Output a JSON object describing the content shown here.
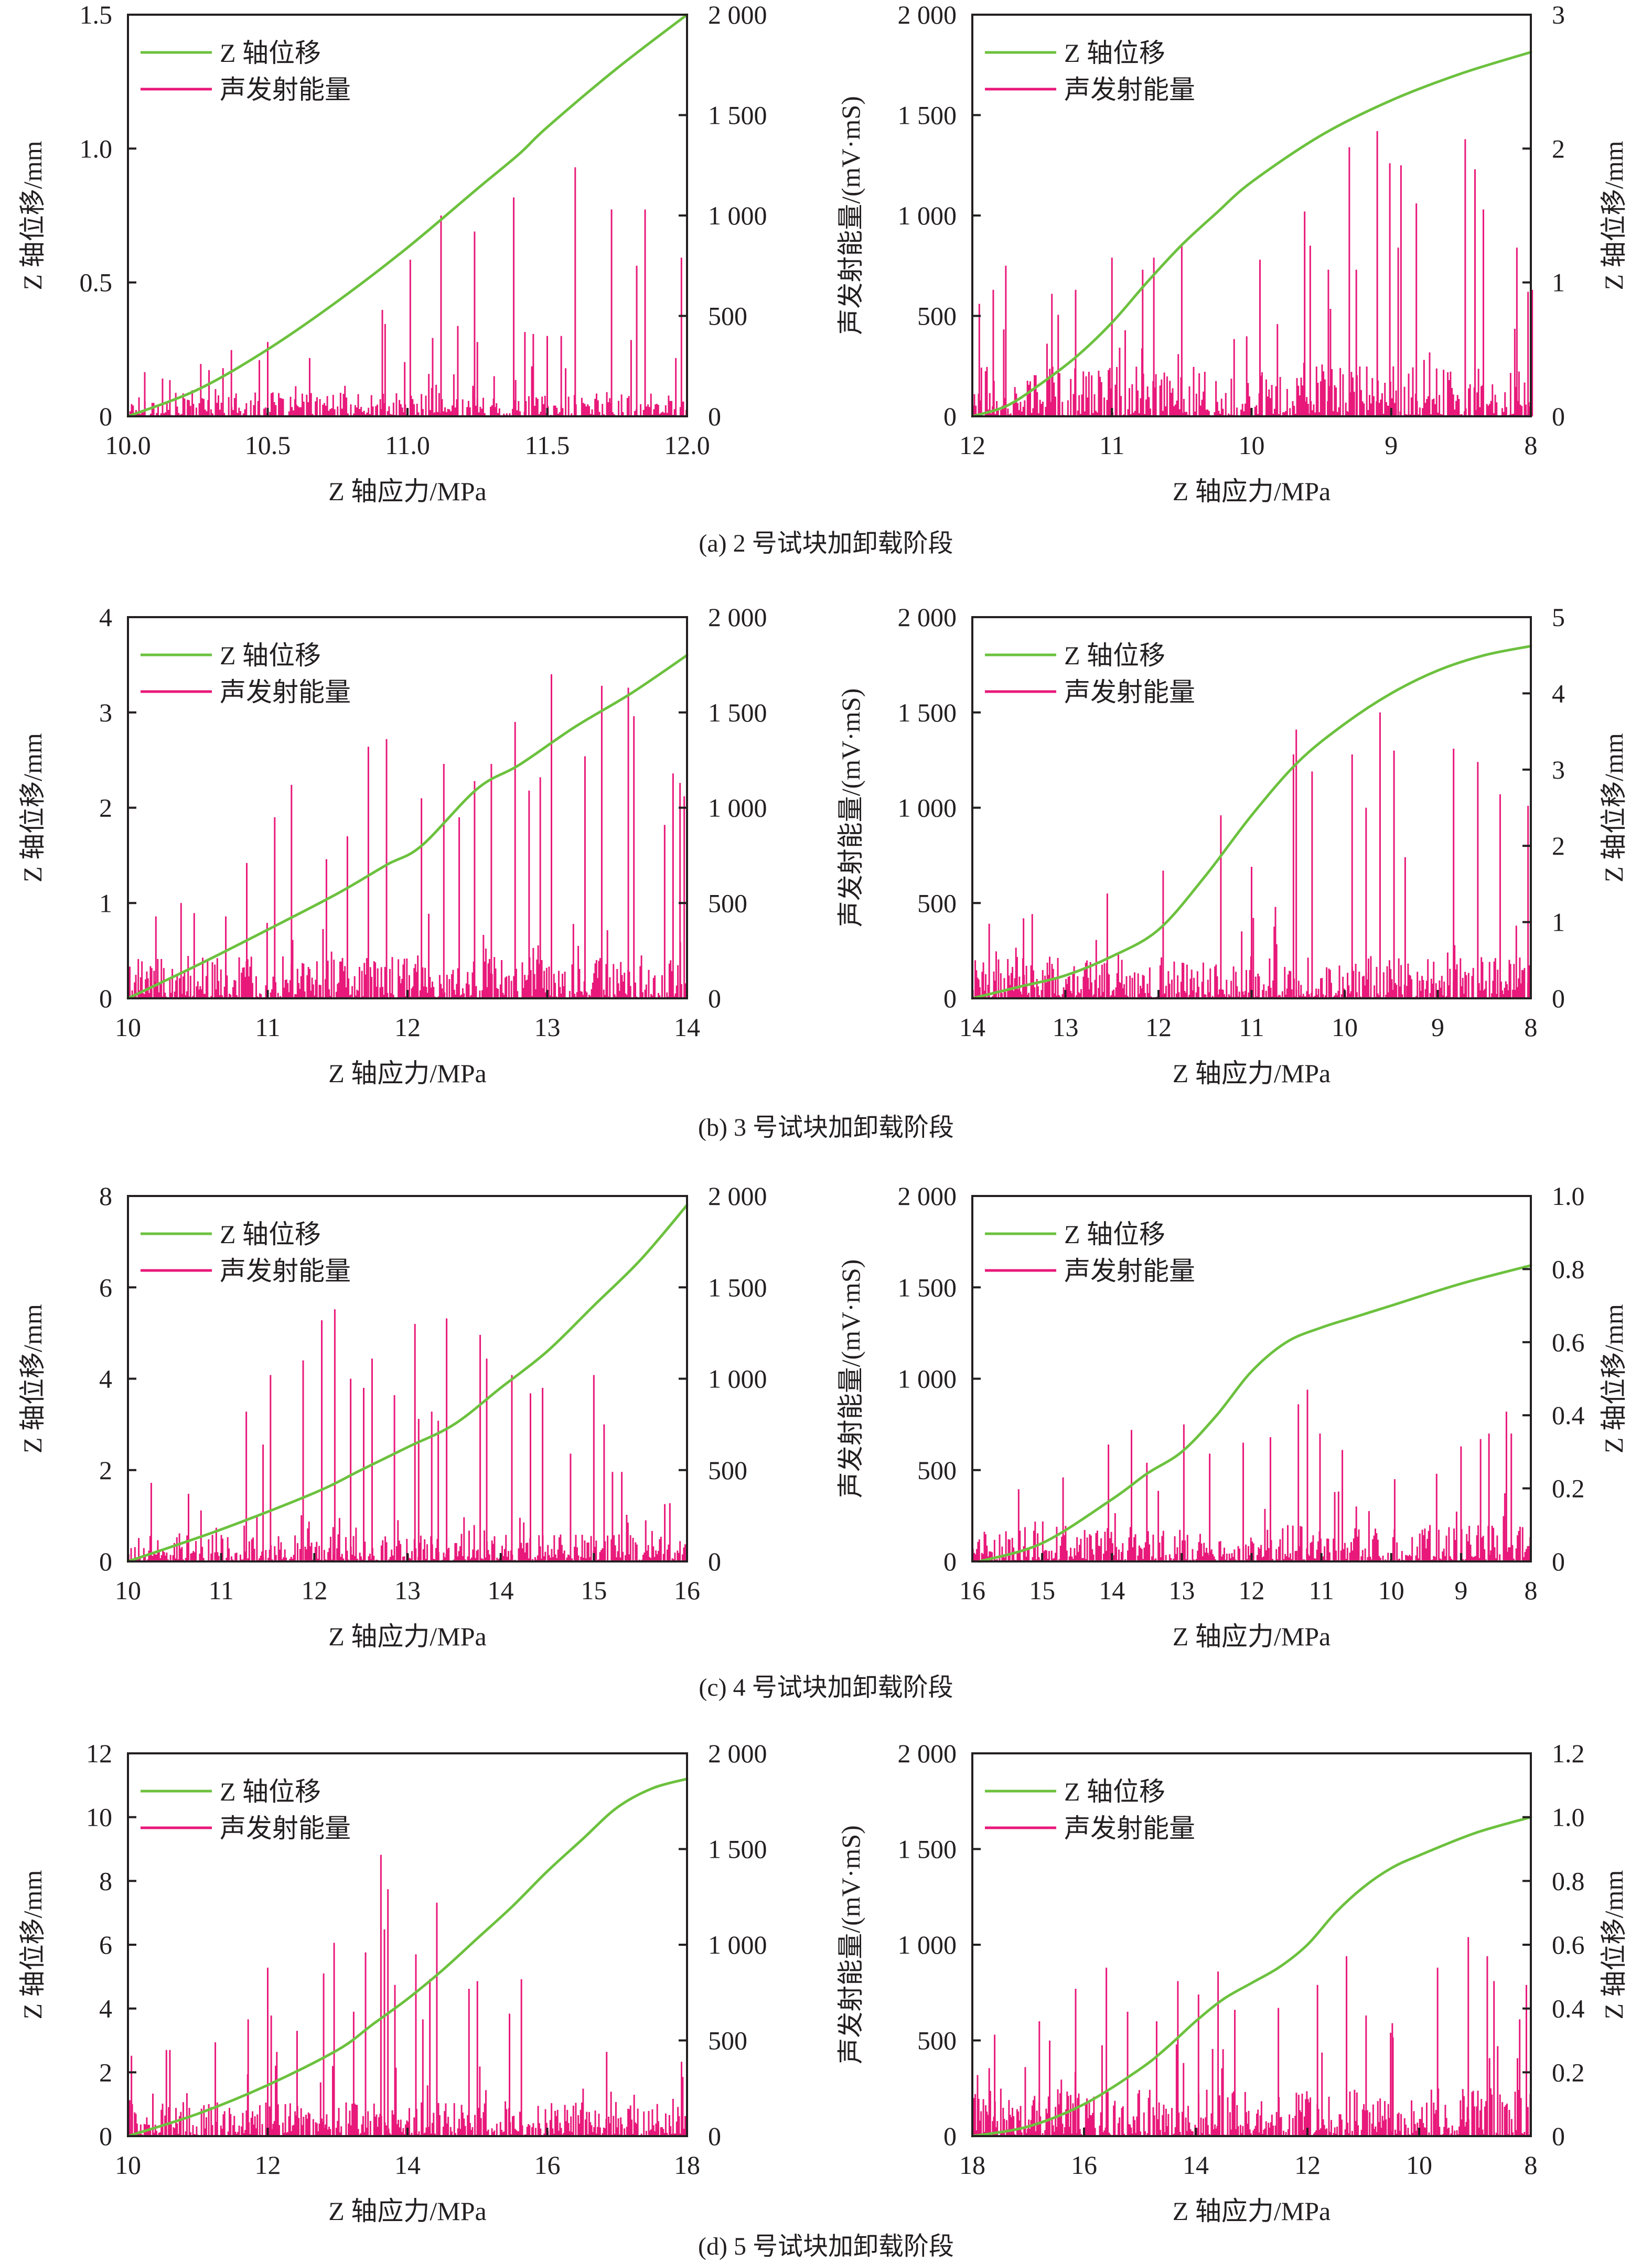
{
  "figure": {
    "legend": {
      "displacement": "Z 轴位移",
      "energy": "声发射能量"
    },
    "colors": {
      "displacement": "#6cc13e",
      "energy": "#e8197a",
      "axis": "#231f20"
    },
    "xlabel": "Z 轴应力/MPa",
    "ylabel_disp": "Z 轴位移/mm",
    "ylabel_energy": "声发射能量/(mV·mS)"
  },
  "captions": [
    "(a) 2 号试块加卸载阶段",
    "(b) 3 号试块加卸载阶段",
    "(c) 4 号试块加卸载阶段",
    "(d) 5 号试块加卸载阶段"
  ],
  "chart_data": [
    {
      "id": "a-loading",
      "row": 0,
      "side": "left",
      "type": "bar+line",
      "phase": "loading",
      "xlim": [
        10,
        12
      ],
      "xticks": [
        10,
        10.5,
        11,
        11.5,
        12
      ],
      "xtick_labels": [
        "10.0",
        "10.5",
        "11.0",
        "11.5",
        "12.0"
      ],
      "disp_axis": "left",
      "disp_lim": [
        0,
        1.5
      ],
      "disp_ticks": [
        0,
        0.5,
        1.0,
        1.5
      ],
      "disp_tick_labels": [
        "0",
        "0.5",
        "1.0",
        "1.5"
      ],
      "energy_axis": "right",
      "energy_lim": [
        0,
        2000
      ],
      "energy_ticks": [
        0,
        500,
        1000,
        1500,
        2000
      ],
      "energy_tick_labels": [
        "0",
        "500",
        "1 000",
        "1 500",
        "2 000"
      ],
      "displacement": {
        "x": [
          10,
          10.25,
          10.5,
          10.75,
          11,
          11.25,
          11.4,
          11.5,
          11.75,
          12
        ],
        "y": [
          0,
          0.1,
          0.25,
          0.43,
          0.63,
          0.85,
          0.98,
          1.08,
          1.3,
          1.5
        ]
      },
      "energy_peaks": {
        "x": [
          10.06,
          10.23,
          10.29,
          10.34,
          10.37,
          10.47,
          10.5,
          10.6,
          10.65,
          10.91,
          10.92,
          10.99,
          11.01,
          11.09,
          11.12,
          11.18,
          11.24,
          11.25,
          11.31,
          11.38,
          11.42,
          11.45,
          11.5,
          11.55,
          11.6,
          11.73,
          11.8,
          11.82,
          11.85,
          11.96,
          11.98
        ],
        "y": [
          220,
          130,
          230,
          240,
          330,
          280,
          370,
          150,
          290,
          530,
          460,
          270,
          780,
          390,
          1000,
          450,
          920,
          370,
          200,
          1090,
          420,
          410,
          400,
          400,
          1240,
          1030,
          380,
          750,
          1030,
          290,
          790
        ]
      },
      "energy_noise_max": 120,
      "bar_count": 380
    },
    {
      "id": "a-unloading",
      "row": 0,
      "side": "right",
      "type": "bar+line",
      "phase": "unloading",
      "xlim": [
        12,
        8
      ],
      "xticks": [
        12,
        11,
        10,
        9,
        8
      ],
      "xtick_labels": [
        "12",
        "11",
        "10",
        "9",
        "8"
      ],
      "energy_axis": "left",
      "energy_lim": [
        0,
        2000
      ],
      "energy_ticks": [
        0,
        500,
        1000,
        1500,
        2000
      ],
      "energy_tick_labels": [
        "0",
        "500",
        "1 000",
        "1 500",
        "2 000"
      ],
      "disp_axis": "right",
      "disp_lim": [
        0,
        3
      ],
      "disp_ticks": [
        0,
        1,
        2,
        3
      ],
      "disp_tick_labels": [
        "0",
        "1",
        "2",
        "3"
      ],
      "displacement": {
        "x": [
          12,
          11.75,
          11.5,
          11.25,
          11,
          10.75,
          10.5,
          10.25,
          10,
          9.5,
          9,
          8.5,
          8
        ],
        "y": [
          0,
          0.08,
          0.25,
          0.45,
          0.7,
          1.0,
          1.28,
          1.52,
          1.75,
          2.1,
          2.36,
          2.56,
          2.72
        ]
      },
      "energy_peaks": {
        "x": [
          11.95,
          11.85,
          11.76,
          11.43,
          11.26,
          11.0,
          10.78,
          10.7,
          10.5,
          9.94,
          9.62,
          9.58,
          9.45,
          9.3,
          9.25,
          9.1,
          9.01,
          8.95,
          8.93,
          8.82,
          8.47,
          8.4,
          8.34,
          8.1,
          8.02,
          7.99
        ],
        "y": [
          560,
          630,
          750,
          610,
          630,
          790,
          730,
          790,
          860,
          780,
          1020,
          850,
          730,
          1340,
          730,
          1420,
          1260,
          840,
          1250,
          1060,
          1380,
          1230,
          1030,
          840,
          620,
          630
        ]
      },
      "energy_noise_max": 250,
      "bar_count": 400
    },
    {
      "id": "b-loading",
      "row": 1,
      "side": "left",
      "type": "bar+line",
      "phase": "loading",
      "xlim": [
        10,
        14
      ],
      "xticks": [
        10,
        11,
        12,
        13,
        14
      ],
      "xtick_labels": [
        "10",
        "11",
        "12",
        "13",
        "14"
      ],
      "disp_axis": "left",
      "disp_lim": [
        0,
        4
      ],
      "disp_ticks": [
        0,
        1,
        2,
        3,
        4
      ],
      "disp_tick_labels": [
        "0",
        "1",
        "2",
        "3",
        "4"
      ],
      "energy_axis": "right",
      "energy_lim": [
        0,
        2000
      ],
      "energy_ticks": [
        0,
        500,
        1000,
        1500,
        2000
      ],
      "energy_tick_labels": [
        "0",
        "500",
        "1 000",
        "1 500",
        "2 000"
      ],
      "displacement": {
        "x": [
          10,
          10.5,
          11,
          11.5,
          11.85,
          12.1,
          12.5,
          12.8,
          13.2,
          13.6,
          14
        ],
        "y": [
          0,
          0.35,
          0.72,
          1.1,
          1.4,
          1.6,
          2.2,
          2.45,
          2.85,
          3.2,
          3.6
        ]
      },
      "energy_peaks": {
        "x": [
          10.2,
          10.38,
          10.7,
          10.85,
          11.05,
          11.17,
          11.42,
          11.57,
          11.72,
          11.85,
          12.1,
          12.26,
          12.37,
          12.48,
          12.6,
          12.77,
          12.87,
          12.95,
          13.03,
          13.27,
          13.39,
          13.58,
          13.62,
          13.84,
          13.9,
          13.95,
          13.98
        ],
        "y": [
          430,
          500,
          430,
          710,
          950,
          1120,
          730,
          850,
          1320,
          1360,
          1050,
          1230,
          950,
          1140,
          1230,
          1450,
          1090,
          1160,
          1700,
          1270,
          1640,
          1630,
          1480,
          910,
          1180,
          1130,
          1060
        ]
      },
      "energy_noise_max": 220,
      "bar_count": 460
    },
    {
      "id": "b-unloading",
      "row": 1,
      "side": "right",
      "type": "bar+line",
      "phase": "unloading",
      "xlim": [
        14,
        8
      ],
      "xticks": [
        14,
        13,
        12,
        11,
        10,
        9,
        8
      ],
      "xtick_labels": [
        "14",
        "13",
        "12",
        "11",
        "10",
        "9",
        "8"
      ],
      "energy_axis": "left",
      "energy_lim": [
        0,
        2000
      ],
      "energy_ticks": [
        0,
        500,
        1000,
        1500,
        2000
      ],
      "energy_tick_labels": [
        "0",
        "500",
        "1 000",
        "1 500",
        "2 000"
      ],
      "disp_axis": "right",
      "disp_lim": [
        0,
        5
      ],
      "disp_ticks": [
        0,
        1,
        2,
        3,
        4,
        5
      ],
      "disp_tick_labels": [
        "0",
        "1",
        "2",
        "3",
        "4",
        "5"
      ],
      "displacement": {
        "x": [
          14,
          13.5,
          13,
          12.5,
          12,
          11.5,
          11,
          10.5,
          10,
          9.5,
          9,
          8.5,
          8
        ],
        "y": [
          0,
          0.15,
          0.3,
          0.55,
          0.9,
          1.6,
          2.4,
          3.1,
          3.6,
          4.0,
          4.3,
          4.5,
          4.62
        ]
      },
      "energy_peaks": {
        "x": [
          13.45,
          12.55,
          11.95,
          11.33,
          11.0,
          10.55,
          10.52,
          10.35,
          9.92,
          9.77,
          9.62,
          9.47,
          9.35,
          8.83,
          8.57,
          8.33,
          8.03
        ],
        "y": [
          420,
          550,
          670,
          960,
          690,
          1280,
          1410,
          1190,
          1280,
          1000,
          1500,
          1300,
          740,
          1310,
          1240,
          1070,
          1010
        ]
      },
      "energy_noise_max": 220,
      "bar_count": 480
    },
    {
      "id": "c-loading",
      "row": 2,
      "side": "left",
      "type": "bar+line",
      "phase": "loading",
      "xlim": [
        10,
        16
      ],
      "xticks": [
        10,
        11,
        12,
        13,
        14,
        15,
        16
      ],
      "xtick_labels": [
        "10",
        "11",
        "12",
        "13",
        "14",
        "15",
        "16"
      ],
      "disp_axis": "left",
      "disp_lim": [
        0,
        8
      ],
      "disp_ticks": [
        0,
        2,
        4,
        6,
        8
      ],
      "disp_tick_labels": [
        "0",
        "2",
        "4",
        "6",
        "8"
      ],
      "energy_axis": "right",
      "energy_lim": [
        0,
        2000
      ],
      "energy_ticks": [
        0,
        500,
        1000,
        1500,
        2000
      ],
      "energy_tick_labels": [
        "0",
        "500",
        "1 000",
        "1 500",
        "2 000"
      ],
      "displacement": {
        "x": [
          10,
          11,
          12,
          12.5,
          13,
          13.5,
          14,
          14.5,
          15,
          15.5,
          16
        ],
        "y": [
          0,
          0.7,
          1.5,
          2.0,
          2.5,
          3.0,
          3.8,
          4.6,
          5.6,
          6.6,
          7.8
        ]
      },
      "energy_peaks": {
        "x": [
          10.25,
          10.65,
          11.27,
          11.45,
          11.53,
          11.88,
          12.08,
          12.22,
          12.39,
          12.53,
          12.62,
          12.86,
          13.08,
          13.12,
          13.26,
          13.33,
          13.42,
          13.78,
          13.85,
          14.12,
          14.32,
          14.45,
          14.75,
          15.0,
          15.11,
          15.2,
          15.3
        ],
        "y": [
          430,
          370,
          820,
          640,
          1020,
          1100,
          1320,
          1380,
          1000,
          950,
          1110,
          910,
          1300,
          780,
          820,
          770,
          1330,
          1240,
          1110,
          1020,
          920,
          950,
          590,
          1020,
          750,
          490,
          490
        ]
      },
      "energy_noise_max": 150,
      "bar_count": 440
    },
    {
      "id": "c-unloading",
      "row": 2,
      "side": "right",
      "type": "bar+line",
      "phase": "unloading",
      "xlim": [
        16,
        8
      ],
      "xticks": [
        16,
        15,
        14,
        13,
        12,
        11,
        10,
        9,
        8
      ],
      "xtick_labels": [
        "16",
        "15",
        "14",
        "13",
        "12",
        "11",
        "10",
        "9",
        "8"
      ],
      "energy_axis": "left",
      "energy_lim": [
        0,
        2000
      ],
      "energy_ticks": [
        0,
        500,
        1000,
        1500,
        2000
      ],
      "energy_tick_labels": [
        "0",
        "500",
        "1 000",
        "1 500",
        "2 000"
      ],
      "disp_axis": "right",
      "disp_lim": [
        0,
        1.0
      ],
      "disp_ticks": [
        0,
        0.2,
        0.4,
        0.6,
        0.8,
        1.0
      ],
      "disp_tick_labels": [
        "0",
        "0.2",
        "0.4",
        "0.6",
        "0.8",
        "1.0"
      ],
      "displacement": {
        "x": [
          15.9,
          15,
          14,
          13.5,
          13,
          12.5,
          12,
          11.5,
          11,
          10.5,
          10,
          9,
          8
        ],
        "y": [
          0,
          0.05,
          0.17,
          0.24,
          0.3,
          0.4,
          0.52,
          0.6,
          0.64,
          0.67,
          0.7,
          0.76,
          0.81
        ]
      },
      "energy_peaks": {
        "x": [
          14.7,
          14.05,
          13.72,
          13.5,
          12.97,
          12.6,
          12.12,
          11.73,
          11.33,
          11.2,
          11.02,
          10.7,
          9.95,
          9.35,
          9.0,
          8.72,
          8.6,
          8.35,
          8.28
        ],
        "y": [
          460,
          640,
          720,
          540,
          750,
          590,
          650,
          680,
          860,
          940,
          700,
          610,
          450,
          480,
          630,
          670,
          700,
          820,
          700
        ]
      },
      "energy_noise_max": 200,
      "bar_count": 440
    },
    {
      "id": "d-loading",
      "row": 3,
      "side": "left",
      "type": "bar+line",
      "phase": "loading",
      "xlim": [
        10,
        18
      ],
      "xticks": [
        10,
        12,
        14,
        16,
        18
      ],
      "xtick_labels": [
        "10",
        "12",
        "14",
        "16",
        "18"
      ],
      "disp_axis": "left",
      "disp_lim": [
        0,
        12
      ],
      "disp_ticks": [
        0,
        2,
        4,
        6,
        8,
        10,
        12
      ],
      "disp_tick_labels": [
        "0",
        "2",
        "4",
        "6",
        "8",
        "10",
        "12"
      ],
      "energy_axis": "right",
      "energy_lim": [
        0,
        2000
      ],
      "energy_ticks": [
        0,
        500,
        1000,
        1500,
        2000
      ],
      "energy_tick_labels": [
        "0",
        "500",
        "1 000",
        "1 500",
        "2 000"
      ],
      "displacement": {
        "x": [
          10,
          11,
          12,
          13,
          13.5,
          14,
          14.5,
          15,
          15.5,
          16,
          16.5,
          17,
          17.5,
          18
        ],
        "y": [
          0,
          0.7,
          1.6,
          2.7,
          3.5,
          4.3,
          5.2,
          6.2,
          7.2,
          8.3,
          9.3,
          10.3,
          10.9,
          11.2
        ]
      },
      "energy_peaks": {
        "x": [
          10.05,
          10.55,
          10.6,
          11.25,
          11.72,
          12.0,
          12.05,
          12.13,
          12.42,
          12.8,
          12.95,
          13.23,
          13.4,
          13.62,
          13.67,
          13.72,
          13.82,
          14.12,
          14.22,
          14.32,
          14.42,
          14.88,
          15.0,
          15.46,
          15.63,
          16.85
        ],
        "y": [
          420,
          450,
          450,
          490,
          610,
          880,
          630,
          440,
          550,
          850,
          1010,
          650,
          960,
          1470,
          1080,
          1290,
          790,
          950,
          610,
          820,
          1220,
          770,
          810,
          640,
          820,
          440
        ]
      },
      "energy_noise_max": 180,
      "bar_count": 460
    },
    {
      "id": "d-unloading",
      "row": 3,
      "side": "right",
      "type": "bar+line",
      "phase": "unloading",
      "xlim": [
        18,
        8
      ],
      "xticks": [
        18,
        16,
        14,
        12,
        10,
        8
      ],
      "xtick_labels": [
        "18",
        "16",
        "14",
        "12",
        "10",
        "8"
      ],
      "energy_axis": "left",
      "energy_lim": [
        0,
        2000
      ],
      "energy_ticks": [
        0,
        500,
        1000,
        1500,
        2000
      ],
      "energy_tick_labels": [
        "0",
        "500",
        "1 000",
        "1 500",
        "2 000"
      ],
      "disp_axis": "right",
      "disp_lim": [
        0,
        1.2
      ],
      "disp_ticks": [
        0,
        0.2,
        0.4,
        0.6,
        0.8,
        1.0,
        1.2
      ],
      "disp_tick_labels": [
        "0",
        "0.2",
        "0.4",
        "0.6",
        "0.8",
        "1.0",
        "1.2"
      ],
      "displacement": {
        "x": [
          18,
          17,
          16,
          15,
          14.5,
          14,
          13.5,
          13,
          12.5,
          12,
          11.5,
          11,
          10.5,
          10,
          9,
          8
        ],
        "y": [
          0,
          0.03,
          0.1,
          0.21,
          0.28,
          0.36,
          0.43,
          0.48,
          0.53,
          0.6,
          0.7,
          0.78,
          0.84,
          0.88,
          0.95,
          1.0
        ]
      },
      "energy_peaks": {
        "x": [
          17.6,
          16.8,
          16.15,
          15.6,
          15.22,
          14.7,
          14.32,
          13.95,
          13.6,
          13.3,
          12.52,
          11.82,
          11.3,
          10.95,
          10.48,
          9.67,
          9.12,
          8.78,
          8.66,
          8.2,
          8.08
        ],
        "y": [
          530,
          600,
          770,
          880,
          650,
          600,
          810,
          740,
          860,
          660,
          670,
          790,
          940,
          630,
          590,
          880,
          1040,
          940,
          810,
          610,
          790
        ]
      },
      "energy_noise_max": 250,
      "bar_count": 480
    }
  ]
}
